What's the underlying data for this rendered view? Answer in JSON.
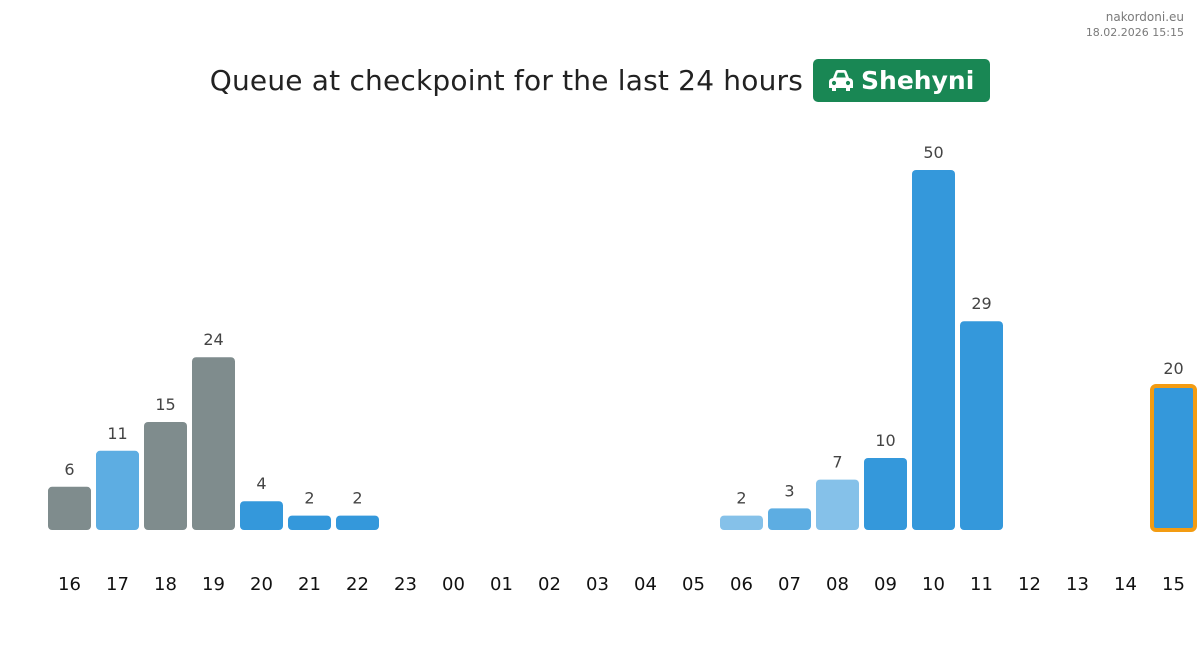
{
  "site": {
    "name": "nakordoni.eu",
    "timestamp": "18.02.2026 15:15"
  },
  "header": {
    "title": "Queue at checkpoint for the last 24 hours",
    "checkpoint_name": "Shehyni",
    "checkpoint_icon": "car-icon",
    "badge_color": "#198754"
  },
  "chart_data": {
    "type": "bar",
    "title": "Queue at checkpoint for the last 24 hours",
    "xlabel": "",
    "ylabel": "",
    "grid": false,
    "ylim": [
      0,
      50
    ],
    "categories": [
      "16",
      "17",
      "18",
      "19",
      "20",
      "21",
      "22",
      "23",
      "00",
      "01",
      "02",
      "03",
      "04",
      "05",
      "06",
      "07",
      "08",
      "09",
      "10",
      "11",
      "12",
      "13",
      "14",
      "15"
    ],
    "values": [
      6,
      11,
      15,
      24,
      4,
      2,
      2,
      null,
      null,
      null,
      null,
      null,
      null,
      null,
      2,
      3,
      7,
      10,
      50,
      29,
      null,
      null,
      null,
      20
    ],
    "bar_colors": [
      "#7f8c8d",
      "#5dade2",
      "#7f8c8d",
      "#7f8c8d",
      "#3498db",
      "#3498db",
      "#3498db",
      null,
      null,
      null,
      null,
      null,
      null,
      null,
      "#85c1e9",
      "#5dade2",
      "#85c1e9",
      "#3498db",
      "#3498db",
      "#3498db",
      null,
      null,
      null,
      "#3498db"
    ],
    "highlight_index": 23,
    "highlight_color": "#f39c12"
  }
}
